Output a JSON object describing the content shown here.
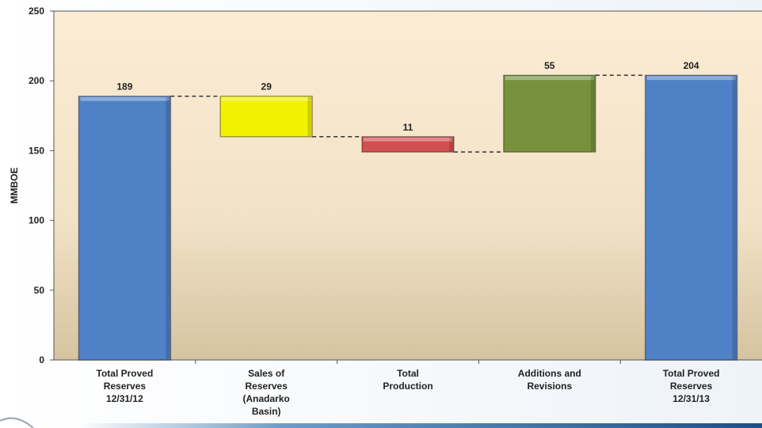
{
  "chart_data": {
    "type": "bar",
    "subtype": "waterfall",
    "categories": [
      [
        "Total Proved",
        "Reserves",
        "12/31/12"
      ],
      [
        "Sales of",
        "Reserves",
        "(Anadarko",
        "Basin)"
      ],
      [
        "Total",
        "Production"
      ],
      [
        "Additions and",
        "Revisions"
      ],
      [
        "Total Proved",
        "Reserves",
        "12/31/13"
      ]
    ],
    "bars": [
      {
        "label": "189",
        "start": 0,
        "end": 189,
        "color": "#4f81c7"
      },
      {
        "label": "29",
        "start": 160,
        "end": 189,
        "color": "#f2f200"
      },
      {
        "label": "11",
        "start": 149,
        "end": 160,
        "color": "#d24f4f"
      },
      {
        "label": "55",
        "start": 149,
        "end": 204,
        "color": "#76923c"
      },
      {
        "label": "204",
        "start": 0,
        "end": 204,
        "color": "#4f81c7"
      }
    ],
    "ylabel": "MMBOE",
    "ylim": [
      0,
      250
    ],
    "yticks": [
      "0",
      "50",
      "100",
      "150",
      "200",
      "250"
    ],
    "connectors": true,
    "background": [
      "#fbe9cf",
      "#d9c7a5"
    ]
  }
}
